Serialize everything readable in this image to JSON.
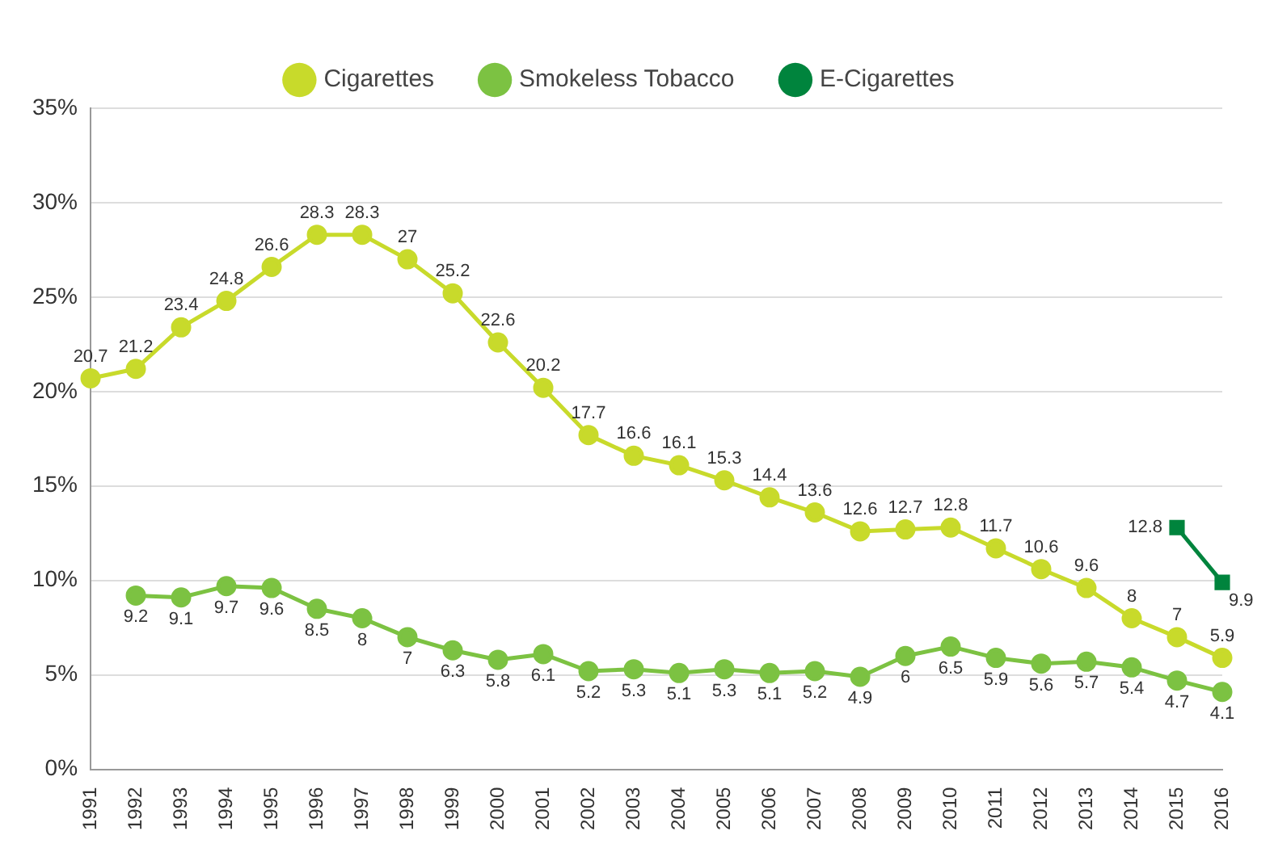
{
  "chart_data": {
    "type": "line",
    "categories": [
      "1991",
      "1992",
      "1993",
      "1994",
      "1995",
      "1996",
      "1997",
      "1998",
      "1999",
      "2000",
      "2001",
      "2002",
      "2003",
      "2004",
      "2005",
      "2006",
      "2007",
      "2008",
      "2009",
      "2010",
      "2011",
      "2012",
      "2013",
      "2014",
      "2015",
      "2016"
    ],
    "series": [
      {
        "name": "Cigarettes",
        "color": "#c8da2b",
        "marker": "circle",
        "values": [
          20.7,
          21.2,
          23.4,
          24.8,
          26.6,
          28.3,
          28.3,
          27,
          25.2,
          22.6,
          20.2,
          17.7,
          16.6,
          16.1,
          15.3,
          14.4,
          13.6,
          12.6,
          12.7,
          12.8,
          11.7,
          10.6,
          9.6,
          8,
          7,
          5.9
        ]
      },
      {
        "name": "Smokeless Tobacco",
        "color": "#7cc242",
        "marker": "circle",
        "values": [
          null,
          9.2,
          9.1,
          9.7,
          9.6,
          8.5,
          8,
          7,
          6.3,
          5.8,
          6.1,
          5.2,
          5.3,
          5.1,
          5.3,
          5.1,
          5.2,
          4.9,
          6,
          6.5,
          5.9,
          5.6,
          5.7,
          5.4,
          4.7,
          4.1
        ]
      },
      {
        "name": "E-Cigarettes",
        "color": "#00843d",
        "marker": "square",
        "values": [
          null,
          null,
          null,
          null,
          null,
          null,
          null,
          null,
          null,
          null,
          null,
          null,
          null,
          null,
          null,
          null,
          null,
          null,
          null,
          null,
          null,
          null,
          null,
          null,
          12.8,
          9.9
        ]
      }
    ],
    "ylim": [
      0,
      35
    ],
    "yticks": [
      {
        "value": 0,
        "label": "0%"
      },
      {
        "value": 5,
        "label": "5%"
      },
      {
        "value": 10,
        "label": "10%"
      },
      {
        "value": 15,
        "label": "15%"
      },
      {
        "value": 20,
        "label": "20%"
      },
      {
        "value": 25,
        "label": "25%"
      },
      {
        "value": 30,
        "label": "30%"
      },
      {
        "value": 35,
        "label": "35%"
      }
    ],
    "grid": "y",
    "legend": "top",
    "data_labels": true,
    "line_style": "solid"
  }
}
